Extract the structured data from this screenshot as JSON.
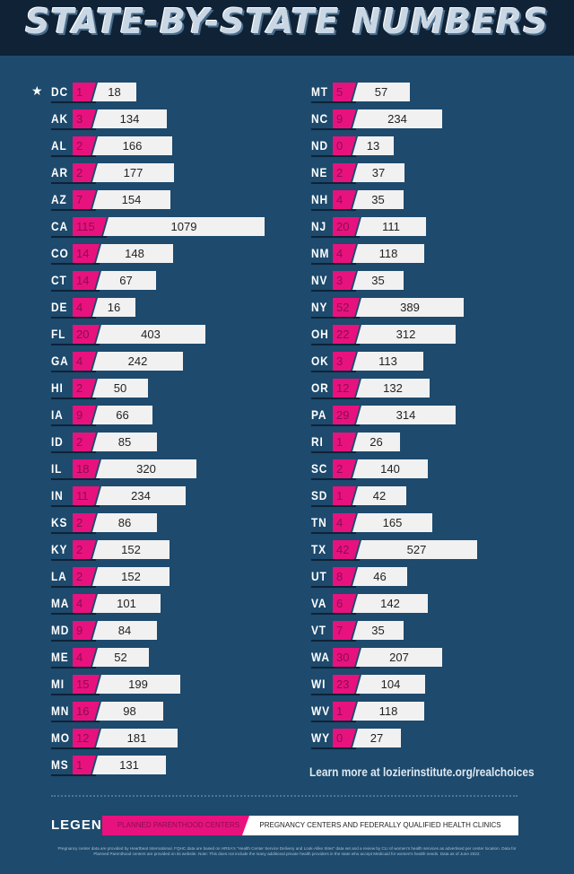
{
  "title": "STATE-BY-STATE NUMBERS",
  "chart_data": {
    "type": "bar",
    "title": "STATE-BY-STATE NUMBERS",
    "series_names": [
      "PLANNED PARENTHOOD CENTERS",
      "PREGNANCY CENTERS AND FEDERALLY QUALIFIED HEALTH CLINICS"
    ],
    "colors": {
      "planned_parenthood": "#e8127f",
      "pregnancy_centers": "#f1f1f2",
      "background": "#1d4a6d"
    },
    "highlighted": "DC",
    "states": [
      {
        "state": "DC",
        "pp": 1,
        "pc": 18
      },
      {
        "state": "AK",
        "pp": 3,
        "pc": 134
      },
      {
        "state": "AL",
        "pp": 2,
        "pc": 166
      },
      {
        "state": "AR",
        "pp": 2,
        "pc": 177
      },
      {
        "state": "AZ",
        "pp": 7,
        "pc": 154
      },
      {
        "state": "CA",
        "pp": 115,
        "pc": 1079
      },
      {
        "state": "CO",
        "pp": 14,
        "pc": 148
      },
      {
        "state": "CT",
        "pp": 14,
        "pc": 67
      },
      {
        "state": "DE",
        "pp": 4,
        "pc": 16
      },
      {
        "state": "FL",
        "pp": 20,
        "pc": 403
      },
      {
        "state": "GA",
        "pp": 4,
        "pc": 242
      },
      {
        "state": "HI",
        "pp": 2,
        "pc": 50
      },
      {
        "state": "IA",
        "pp": 9,
        "pc": 66
      },
      {
        "state": "ID",
        "pp": 2,
        "pc": 85
      },
      {
        "state": "IL",
        "pp": 18,
        "pc": 320
      },
      {
        "state": "IN",
        "pp": 11,
        "pc": 234
      },
      {
        "state": "KS",
        "pp": 2,
        "pc": 86
      },
      {
        "state": "KY",
        "pp": 2,
        "pc": 152
      },
      {
        "state": "LA",
        "pp": 2,
        "pc": 152
      },
      {
        "state": "MA",
        "pp": 4,
        "pc": 101
      },
      {
        "state": "MD",
        "pp": 9,
        "pc": 84
      },
      {
        "state": "ME",
        "pp": 4,
        "pc": 52
      },
      {
        "state": "MI",
        "pp": 15,
        "pc": 199
      },
      {
        "state": "MN",
        "pp": 16,
        "pc": 98
      },
      {
        "state": "MO",
        "pp": 12,
        "pc": 181
      },
      {
        "state": "MS",
        "pp": 1,
        "pc": 131
      },
      {
        "state": "MT",
        "pp": 5,
        "pc": 57
      },
      {
        "state": "NC",
        "pp": 9,
        "pc": 234
      },
      {
        "state": "ND",
        "pp": 0,
        "pc": 13
      },
      {
        "state": "NE",
        "pp": 2,
        "pc": 37
      },
      {
        "state": "NH",
        "pp": 4,
        "pc": 35
      },
      {
        "state": "NJ",
        "pp": 20,
        "pc": 111
      },
      {
        "state": "NM",
        "pp": 4,
        "pc": 118
      },
      {
        "state": "NV",
        "pp": 3,
        "pc": 35
      },
      {
        "state": "NY",
        "pp": 52,
        "pc": 389
      },
      {
        "state": "OH",
        "pp": 22,
        "pc": 312
      },
      {
        "state": "OK",
        "pp": 3,
        "pc": 113
      },
      {
        "state": "OR",
        "pp": 12,
        "pc": 132
      },
      {
        "state": "PA",
        "pp": 29,
        "pc": 314
      },
      {
        "state": "RI",
        "pp": 1,
        "pc": 26
      },
      {
        "state": "SC",
        "pp": 2,
        "pc": 140
      },
      {
        "state": "SD",
        "pp": 1,
        "pc": 42
      },
      {
        "state": "TN",
        "pp": 4,
        "pc": 165
      },
      {
        "state": "TX",
        "pp": 42,
        "pc": 527
      },
      {
        "state": "UT",
        "pp": 8,
        "pc": 46
      },
      {
        "state": "VA",
        "pp": 6,
        "pc": 142
      },
      {
        "state": "VT",
        "pp": 7,
        "pc": 35
      },
      {
        "state": "WA",
        "pp": 30,
        "pc": 207
      },
      {
        "state": "WI",
        "pp": 23,
        "pc": 104
      },
      {
        "state": "WV",
        "pp": 1,
        "pc": 118
      },
      {
        "state": "WY",
        "pp": 0,
        "pc": 27
      }
    ]
  },
  "learn_more": "Learn more at lozierinstitute.org/realchoices",
  "legend": {
    "label": "LEGEND",
    "planned_parenthood": "PLANNED PARENTHOOD CENTERS",
    "pregnancy_centers": "PREGNANCY CENTERS AND FEDERALLY QUALIFIED HEALTH CLINICS"
  },
  "footnote": "Pregnancy center data are provided by Heartbeat International. FQHC data are based on HRSA's \"Health Center Service Delivery and Look-Alike Sites\" data set and a review by CLI of women's health services as advertised per center location. Data for Planned Parenthood centers are provided on its website. Note: This does not include the many additional private health providers in the state who accept Medicaid for women's health needs. Data as of June 2022."
}
